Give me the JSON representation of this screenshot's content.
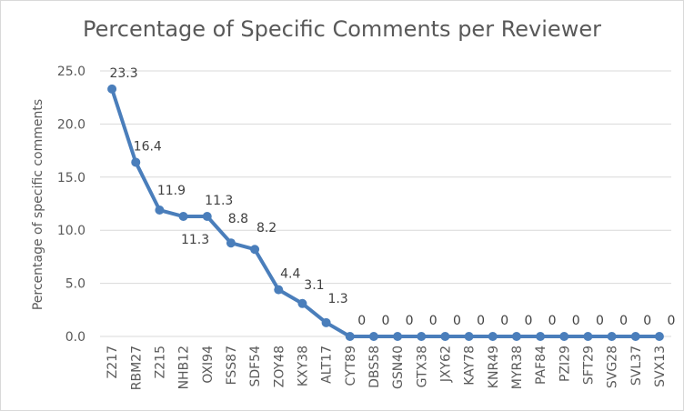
{
  "chart_data": {
    "type": "line",
    "title": "Percentage of Specific Comments per Reviewer",
    "xlabel": "",
    "ylabel": "Percentage of specific comments",
    "ylim": [
      0,
      25
    ],
    "yticks": [
      "0.0",
      "5.0",
      "10.0",
      "15.0",
      "20.0",
      "25.0"
    ],
    "grid": true,
    "legend": "none",
    "categories": [
      "Z217",
      "RBM27",
      "Z215",
      "NHB12",
      "OXI94",
      "FSS87",
      "SDF54",
      "ZOY48",
      "KXY38",
      "ALT17",
      "CYT89",
      "DBS58",
      "GSN40",
      "GTX38",
      "JXY62",
      "KAY78",
      "KNR49",
      "MYR38",
      "PAF84",
      "PZI29",
      "SFT29",
      "SVG28",
      "SVL37",
      "SVX13"
    ],
    "values": [
      23.3,
      16.4,
      11.9,
      11.3,
      11.3,
      8.8,
      8.2,
      4.4,
      3.1,
      1.3,
      0,
      0,
      0,
      0,
      0,
      0,
      0,
      0,
      0,
      0,
      0,
      0,
      0,
      0
    ],
    "data_labels": [
      "23.3",
      "16.4",
      "11.9",
      "11.3",
      "11.3",
      "8.8",
      "8.2",
      "4.4",
      "3.1",
      "1.3",
      "0",
      "0",
      "0",
      "0",
      "0",
      "0",
      "0",
      "0",
      "0",
      "0",
      "0",
      "0",
      "0",
      "0"
    ],
    "line_color": "#4a7ebb",
    "grid_color": "#d9d9d9"
  }
}
